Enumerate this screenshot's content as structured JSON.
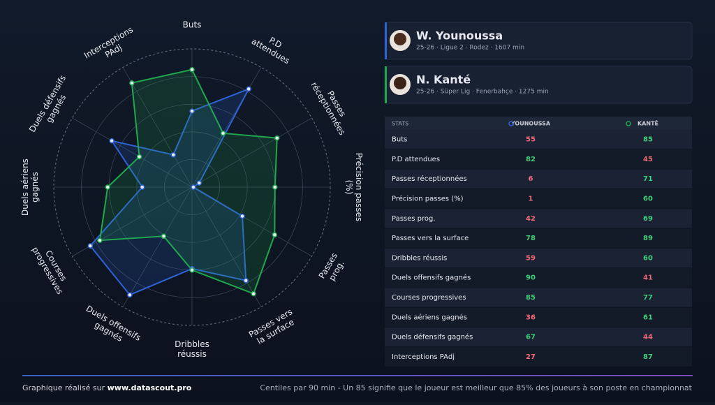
{
  "chart_data": {
    "type": "radar",
    "categories": [
      "Buts",
      "P.D attendues",
      "Passes réceptionnées",
      "Précision passes (%)",
      "Passes prog.",
      "Passes vers la surface",
      "Dribbles réussis",
      "Duels offensifs gagnés",
      "Courses progressives",
      "Duels aériens gagnés",
      "Duels défensifs gagnés",
      "Interceptions PAdj"
    ],
    "series": [
      {
        "name": "Younoussa",
        "color": "#2f62d6",
        "values": [
          55,
          82,
          6,
          1,
          42,
          78,
          59,
          90,
          85,
          36,
          67,
          27
        ]
      },
      {
        "name": "Kanté",
        "color": "#1fa84e",
        "values": [
          85,
          45,
          71,
          60,
          69,
          89,
          60,
          41,
          77,
          61,
          44,
          87
        ]
      }
    ],
    "rlim": [
      0,
      100
    ],
    "rticks": [
      20,
      40,
      60,
      80,
      100
    ],
    "good_color": "#3fcf7a",
    "bad_color": "#f06a78",
    "highlight_threshold": 60
  },
  "players": [
    {
      "name": "W. Younoussa",
      "info": "25-26 · Ligue 2 · Rodez · 1607 min"
    },
    {
      "name": "N. Kanté",
      "info": "25-26 · Süper Lig · Fenerbahçe · 1275 min"
    }
  ],
  "table": {
    "header": "STATS"
  },
  "footer": {
    "left": "Graphique réalisé sur ",
    "link": "www.datascout.pro",
    "right": "Centiles par 90 min - Un 85 signifie que le joueur est meilleur que 85% des joueurs à son poste en championnat"
  }
}
